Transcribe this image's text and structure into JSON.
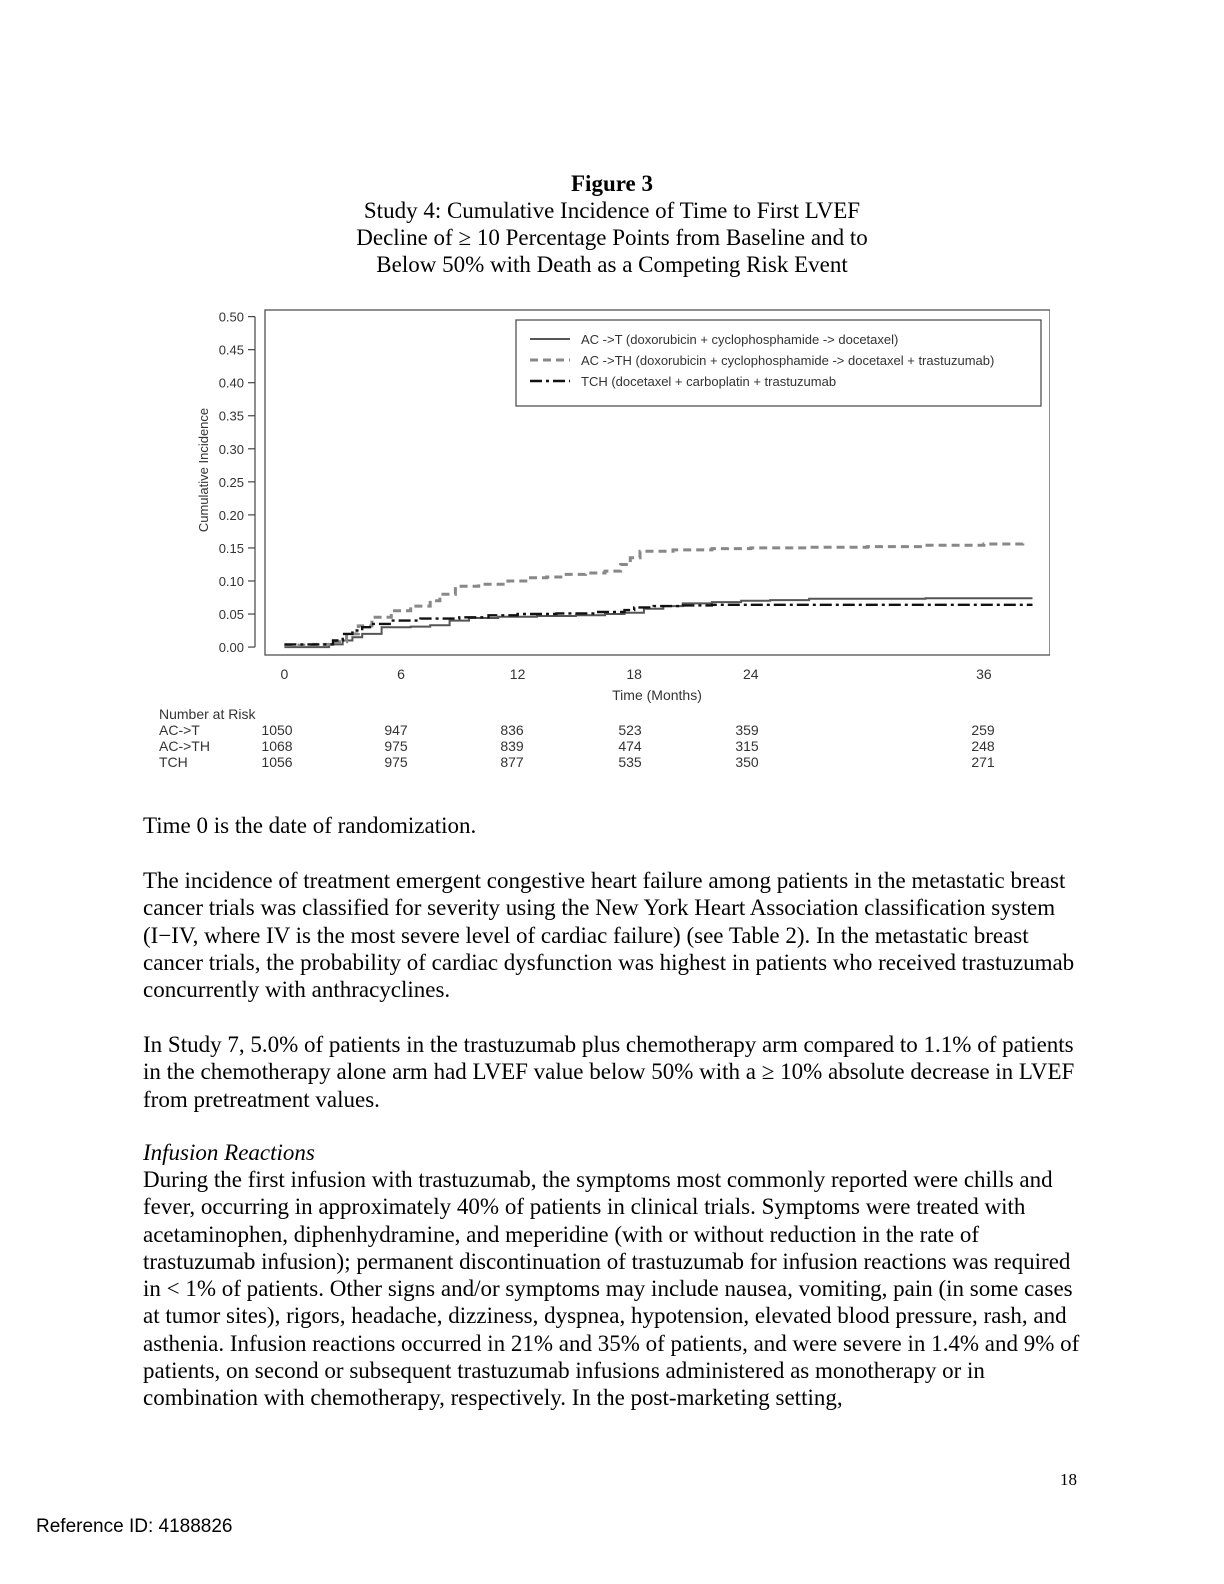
{
  "figure": {
    "number": "Figure 3",
    "caption": "Study 4:  Cumulative Incidence of Time to First LVEF\nDecline of ≥ 10 Percentage Points from Baseline and to\nBelow 50% with Death as a Competing Risk Event"
  },
  "chart_data": {
    "type": "line",
    "xlabel": "Time (Months)",
    "ylabel": "Cumulative Incidence",
    "xlim": [
      -1,
      39.4
    ],
    "ylim": [
      -0.012,
      0.51
    ],
    "x_ticks": [
      0,
      6,
      12,
      18,
      24,
      36
    ],
    "y_ticks": [
      0.0,
      0.05,
      0.1,
      0.15,
      0.2,
      0.25,
      0.3,
      0.35,
      0.4,
      0.45,
      0.5
    ],
    "y_tick_labels": [
      "0.00",
      "0.05",
      "0.10",
      "0.15",
      "0.20",
      "0.25",
      "0.30",
      "0.35",
      "0.40",
      "0.45",
      "0.50"
    ],
    "legend_position": "top-right",
    "series": [
      {
        "name": "AC ->T (doxorubicin + cyclophosphamide -> docetaxel)",
        "style": "solid",
        "color": "#555555",
        "points": [
          [
            0,
            0.0
          ],
          [
            1.5,
            0.0
          ],
          [
            2.3,
            0.004
          ],
          [
            3.0,
            0.01
          ],
          [
            3.5,
            0.015
          ],
          [
            4.0,
            0.02
          ],
          [
            5.0,
            0.03
          ],
          [
            6.5,
            0.031
          ],
          [
            7.5,
            0.033
          ],
          [
            8.5,
            0.04
          ],
          [
            9.5,
            0.044
          ],
          [
            11.0,
            0.046
          ],
          [
            13.0,
            0.047
          ],
          [
            15.0,
            0.048
          ],
          [
            16.5,
            0.05
          ],
          [
            17.5,
            0.052
          ],
          [
            18.5,
            0.058
          ],
          [
            19.5,
            0.062
          ],
          [
            20.5,
            0.066
          ],
          [
            22.0,
            0.068
          ],
          [
            23.5,
            0.07
          ],
          [
            25.0,
            0.071
          ],
          [
            27.0,
            0.073
          ],
          [
            31.0,
            0.073
          ],
          [
            33.0,
            0.074
          ],
          [
            38.5,
            0.074
          ]
        ]
      },
      {
        "name": "AC ->TH (doxorubicin + cyclophosphamide -> docetaxel + trastuzumab)",
        "style": "dashed",
        "color": "#888888",
        "points": [
          [
            0,
            0.003
          ],
          [
            1.5,
            0.004
          ],
          [
            2.5,
            0.008
          ],
          [
            3.2,
            0.02
          ],
          [
            3.8,
            0.032
          ],
          [
            4.5,
            0.045
          ],
          [
            5.5,
            0.055
          ],
          [
            6.5,
            0.062
          ],
          [
            7.5,
            0.07
          ],
          [
            8.0,
            0.08
          ],
          [
            8.8,
            0.092
          ],
          [
            10.0,
            0.095
          ],
          [
            11.5,
            0.1
          ],
          [
            12.5,
            0.105
          ],
          [
            13.5,
            0.106
          ],
          [
            14.5,
            0.11
          ],
          [
            15.5,
            0.112
          ],
          [
            16.5,
            0.115
          ],
          [
            17.3,
            0.125
          ],
          [
            17.8,
            0.135
          ],
          [
            18.3,
            0.145
          ],
          [
            20.0,
            0.147
          ],
          [
            22.0,
            0.149
          ],
          [
            24.0,
            0.15
          ],
          [
            27.0,
            0.151
          ],
          [
            30.0,
            0.152
          ],
          [
            33.0,
            0.154
          ],
          [
            36.0,
            0.156
          ],
          [
            38.0,
            0.158
          ]
        ]
      },
      {
        "name": "TCH (docetaxel + carboplatin + trastuzumab",
        "style": "dashdot",
        "color": "#111111",
        "points": [
          [
            0,
            0.004
          ],
          [
            1.5,
            0.004
          ],
          [
            2.5,
            0.01
          ],
          [
            3.0,
            0.02
          ],
          [
            3.5,
            0.025
          ],
          [
            4.0,
            0.03
          ],
          [
            4.5,
            0.035
          ],
          [
            5.5,
            0.04
          ],
          [
            7.0,
            0.043
          ],
          [
            9.0,
            0.045
          ],
          [
            10.5,
            0.048
          ],
          [
            12.0,
            0.05
          ],
          [
            14.0,
            0.051
          ],
          [
            16.0,
            0.053
          ],
          [
            17.5,
            0.056
          ],
          [
            18.0,
            0.06
          ],
          [
            19.0,
            0.062
          ],
          [
            20.5,
            0.063
          ],
          [
            22.0,
            0.064
          ],
          [
            38.5,
            0.064
          ]
        ]
      }
    ],
    "number_at_risk": {
      "title": "Number at Risk",
      "rows": [
        {
          "label": "AC->T",
          "values": [
            "1050",
            "947",
            "836",
            "523",
            "359",
            "259"
          ]
        },
        {
          "label": "AC->TH",
          "values": [
            "1068",
            "975",
            "839",
            "474",
            "315",
            "248"
          ]
        },
        {
          "label": "TCH",
          "values": [
            "1056",
            "975",
            "877",
            "535",
            "350",
            "271"
          ]
        }
      ]
    }
  },
  "text": {
    "p1": "Time 0 is the date of randomization.",
    "p2": "The incidence of treatment emergent congestive heart failure among patients in the metastatic breast cancer trials was classified for severity using the New York Heart Association classification system (I−IV, where IV is the most severe level of cardiac failure) (see Table 2). In the metastatic breast cancer trials, the probability of cardiac dysfunction was highest in patients who received trastuzumab concurrently with anthracyclines.",
    "p3": "In Study 7, 5.0% of patients in the trastuzumab plus chemotherapy arm compared to 1.1% of patients in the chemotherapy alone arm had LVEF value below 50% with a ≥ 10% absolute decrease in LVEF from pretreatment values.",
    "subhead": "Infusion Reactions",
    "p4": "During the first infusion with trastuzumab, the symptoms most commonly reported were chills and fever, occurring in approximately 40% of patients in clinical trials. Symptoms were treated with acetaminophen, diphenhydramine, and meperidine (with or without reduction in the rate of trastuzumab infusion); permanent discontinuation of trastuzumab for infusion reactions was required in < 1% of patients. Other signs and/or symptoms may include nausea, vomiting, pain (in some cases at tumor sites), rigors, headache, dizziness, dyspnea, hypotension, elevated blood pressure, rash, and asthenia. Infusion reactions occurred in 21% and 35% of patients, and were severe in 1.4% and 9% of patients, on second or subsequent trastuzumab infusions administered as monotherapy or in combination with chemotherapy, respectively. In the post-marketing setting,"
  },
  "footer": {
    "page_number": "18",
    "reference": "Reference ID: 4188826"
  }
}
